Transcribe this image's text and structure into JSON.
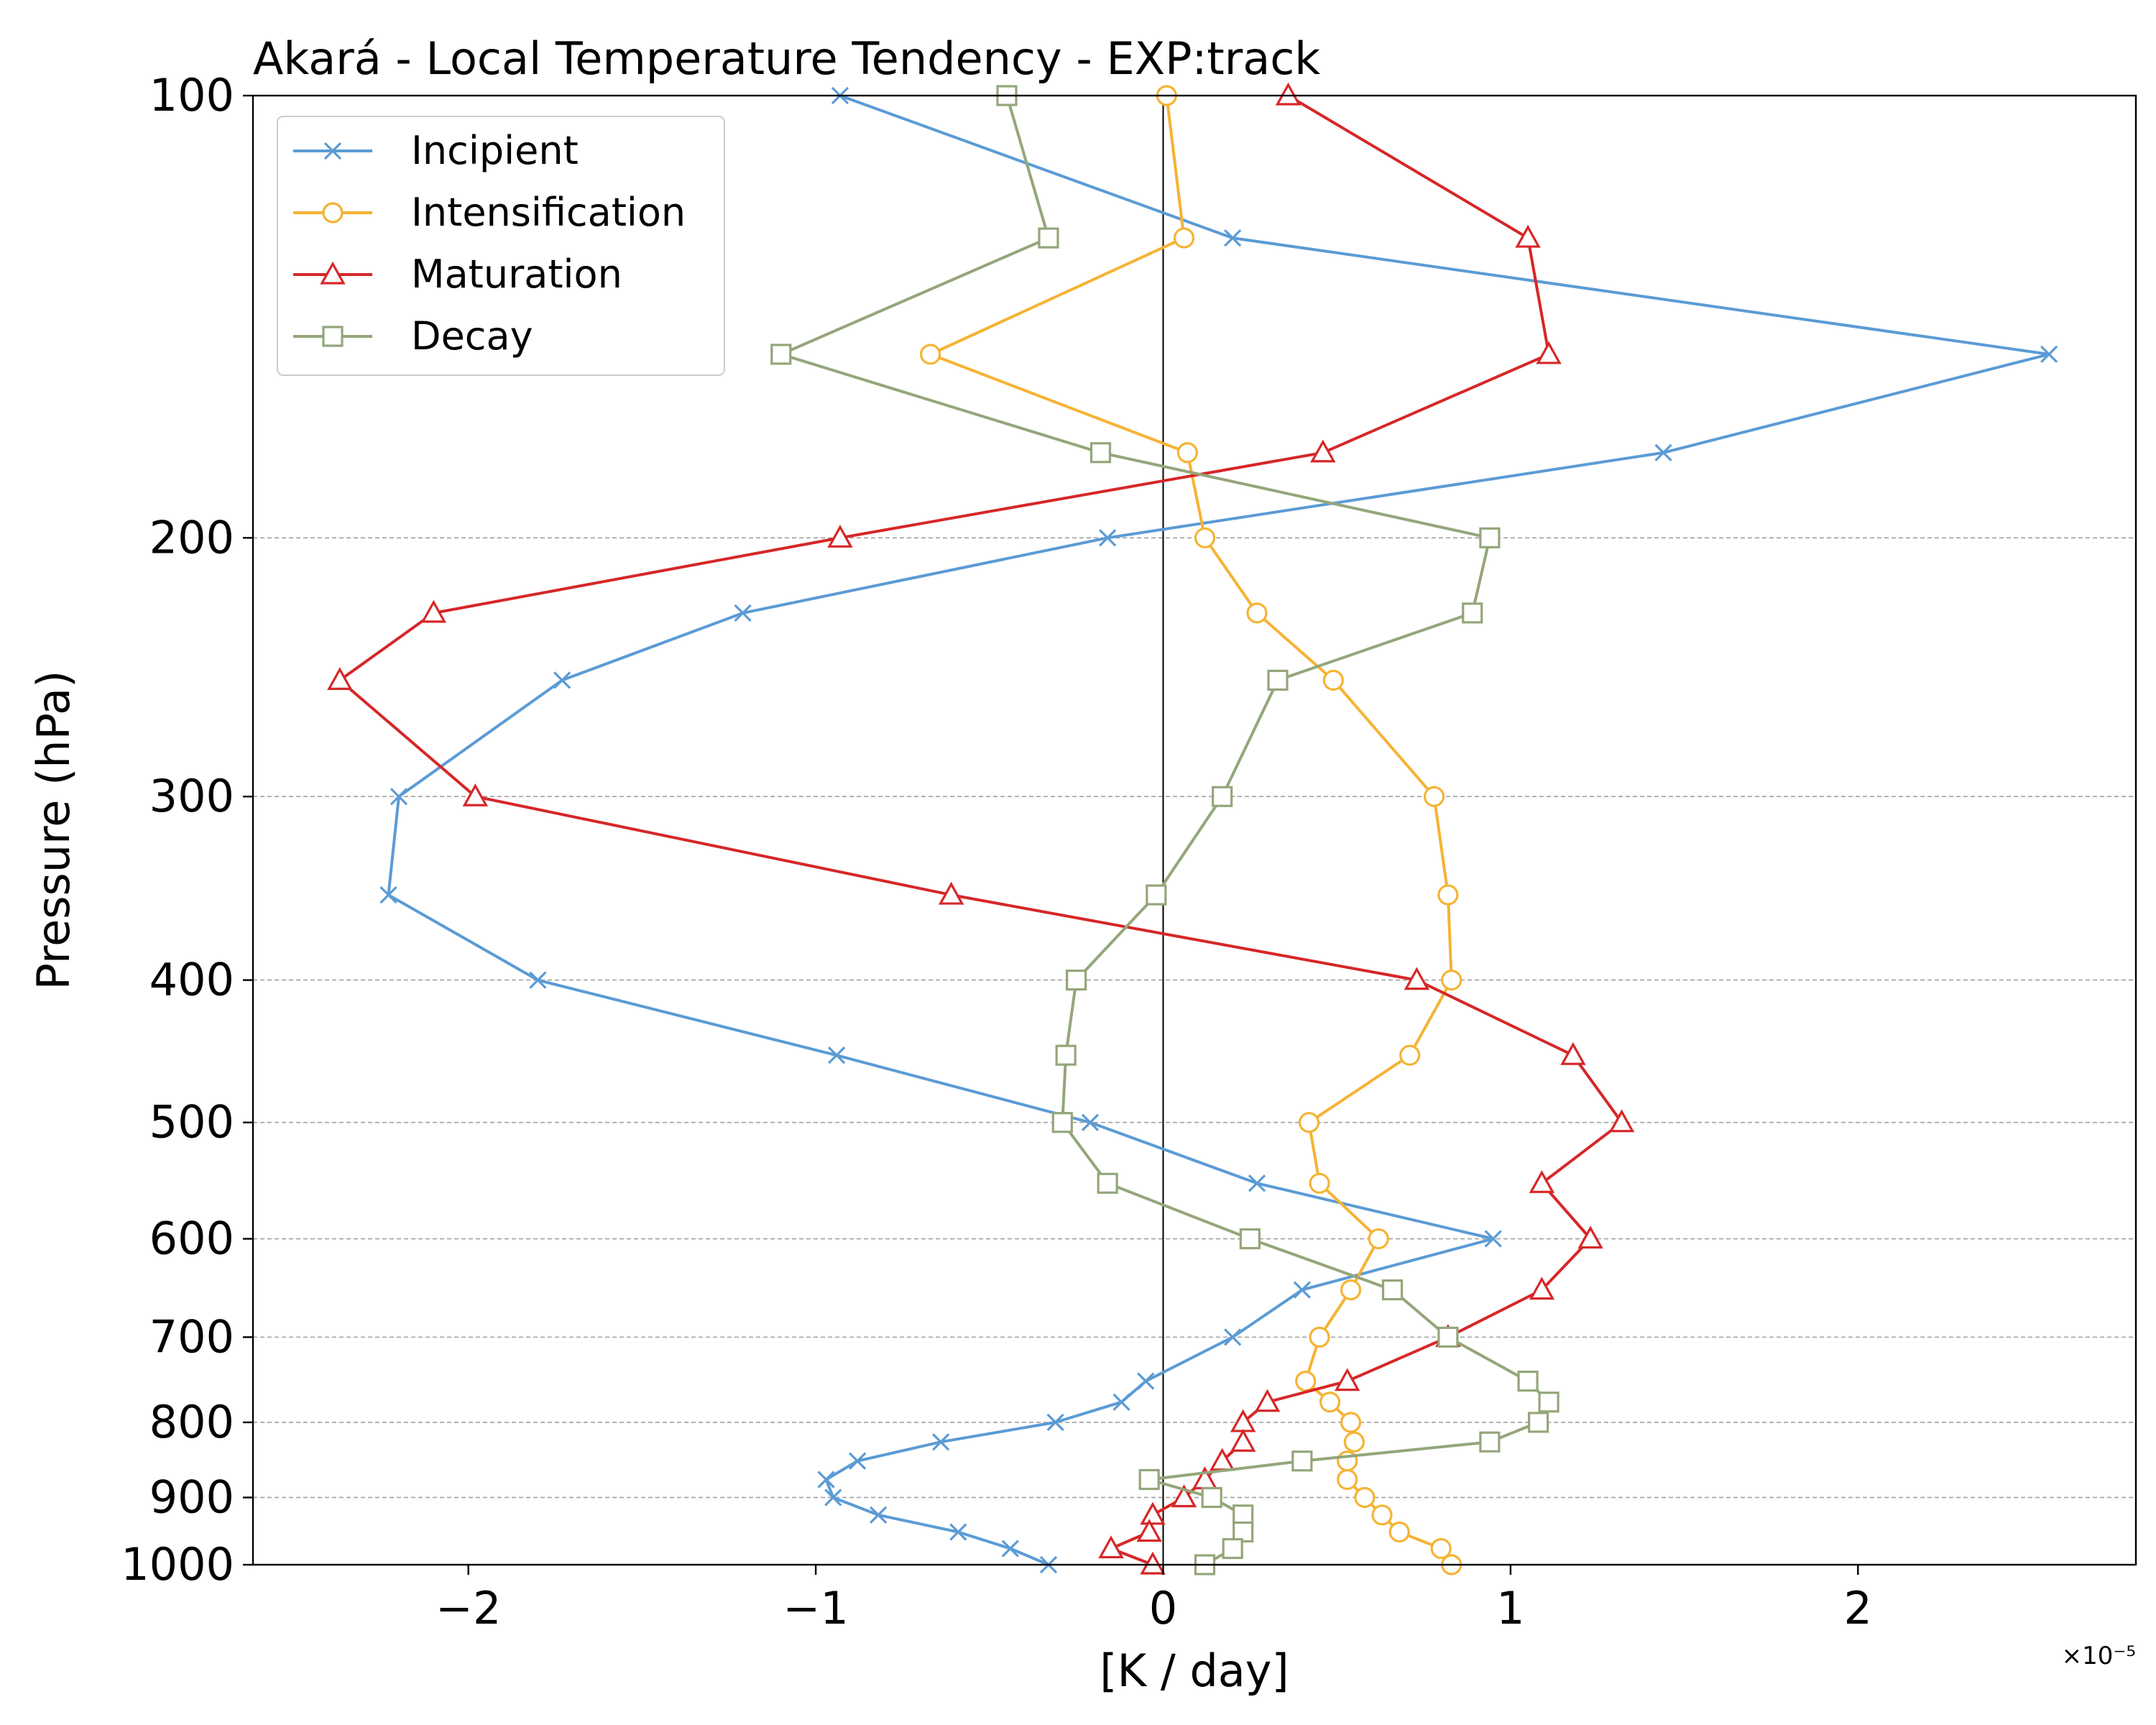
{
  "chart_data": {
    "type": "line",
    "title": "Akará - Local Temperature Tendency - EXP:track",
    "xlabel": "[K / day]",
    "ylabel": "Pressure (hPa)",
    "x_multiplier": "×10⁻⁵",
    "x_ticks": [
      -2,
      -1,
      0,
      1,
      2
    ],
    "x_tick_labels": [
      "−2",
      "−1",
      "0",
      "1",
      "2"
    ],
    "xlim": [
      -2.62,
      2.8
    ],
    "y_scale": "log",
    "y_inverted": true,
    "ylim": [
      1000,
      100
    ],
    "y_ticks": [
      100,
      200,
      300,
      400,
      500,
      600,
      700,
      800,
      900,
      1000
    ],
    "y_tick_labels": [
      "100",
      "200",
      "300",
      "400",
      "500",
      "600",
      "700",
      "800",
      "900",
      "1000"
    ],
    "grid": "horizontal dashed",
    "legend_position": "upper-left",
    "zero_line": true,
    "series": [
      {
        "name": "Incipient",
        "color": "#5b9bd5",
        "marker": "x",
        "pressure": [
          100,
          125,
          150,
          175,
          200,
          225,
          250,
          300,
          350,
          400,
          450,
          500,
          550,
          600,
          650,
          700,
          750,
          775,
          800,
          825,
          850,
          875,
          900,
          925,
          950,
          975,
          1000
        ],
        "values": [
          -0.93,
          0.2,
          2.55,
          1.44,
          -0.16,
          -1.21,
          -1.73,
          -2.2,
          -2.23,
          -1.8,
          -0.94,
          -0.21,
          0.27,
          0.95,
          0.4,
          0.2,
          -0.05,
          -0.12,
          -0.31,
          -0.64,
          -0.88,
          -0.97,
          -0.95,
          -0.82,
          -0.59,
          -0.44,
          -0.33
        ]
      },
      {
        "name": "Intensification",
        "color": "#f5b335",
        "marker": "circle",
        "pressure": [
          100,
          125,
          150,
          175,
          200,
          225,
          250,
          300,
          350,
          400,
          450,
          500,
          550,
          600,
          650,
          700,
          750,
          775,
          800,
          825,
          850,
          875,
          900,
          925,
          950,
          975,
          1000
        ],
        "values": [
          0.01,
          0.06,
          -0.67,
          0.07,
          0.12,
          0.27,
          0.49,
          0.78,
          0.82,
          0.83,
          0.71,
          0.42,
          0.45,
          0.62,
          0.54,
          0.45,
          0.41,
          0.48,
          0.54,
          0.55,
          0.53,
          0.53,
          0.58,
          0.63,
          0.68,
          0.8,
          0.83
        ]
      },
      {
        "name": "Maturation",
        "color": "#d62728",
        "marker": "triangle",
        "pressure": [
          100,
          125,
          150,
          175,
          200,
          225,
          250,
          300,
          350,
          400,
          450,
          500,
          550,
          600,
          650,
          700,
          750,
          775,
          800,
          825,
          850,
          875,
          900,
          925,
          950,
          975,
          1000
        ],
        "values": [
          0.36,
          1.05,
          1.11,
          0.46,
          -0.93,
          -2.1,
          -2.37,
          -1.98,
          -0.61,
          0.73,
          1.18,
          1.32,
          1.09,
          1.23,
          1.09,
          0.82,
          0.53,
          0.3,
          0.23,
          0.23,
          0.17,
          0.12,
          0.06,
          -0.03,
          -0.04,
          -0.15,
          -0.03
        ]
      },
      {
        "name": "Decay",
        "color": "#94a67a",
        "marker": "square",
        "pressure": [
          100,
          125,
          150,
          175,
          200,
          225,
          250,
          300,
          350,
          400,
          450,
          500,
          550,
          600,
          650,
          700,
          750,
          775,
          800,
          825,
          850,
          875,
          900,
          925,
          950,
          975,
          1000
        ],
        "values": [
          -0.45,
          -0.33,
          -1.1,
          -0.18,
          0.94,
          0.89,
          0.33,
          0.17,
          -0.02,
          -0.25,
          -0.28,
          -0.29,
          -0.16,
          0.25,
          0.66,
          0.82,
          1.05,
          1.11,
          1.08,
          0.94,
          0.4,
          -0.04,
          0.14,
          0.23,
          0.23,
          0.2,
          0.12
        ]
      }
    ]
  }
}
